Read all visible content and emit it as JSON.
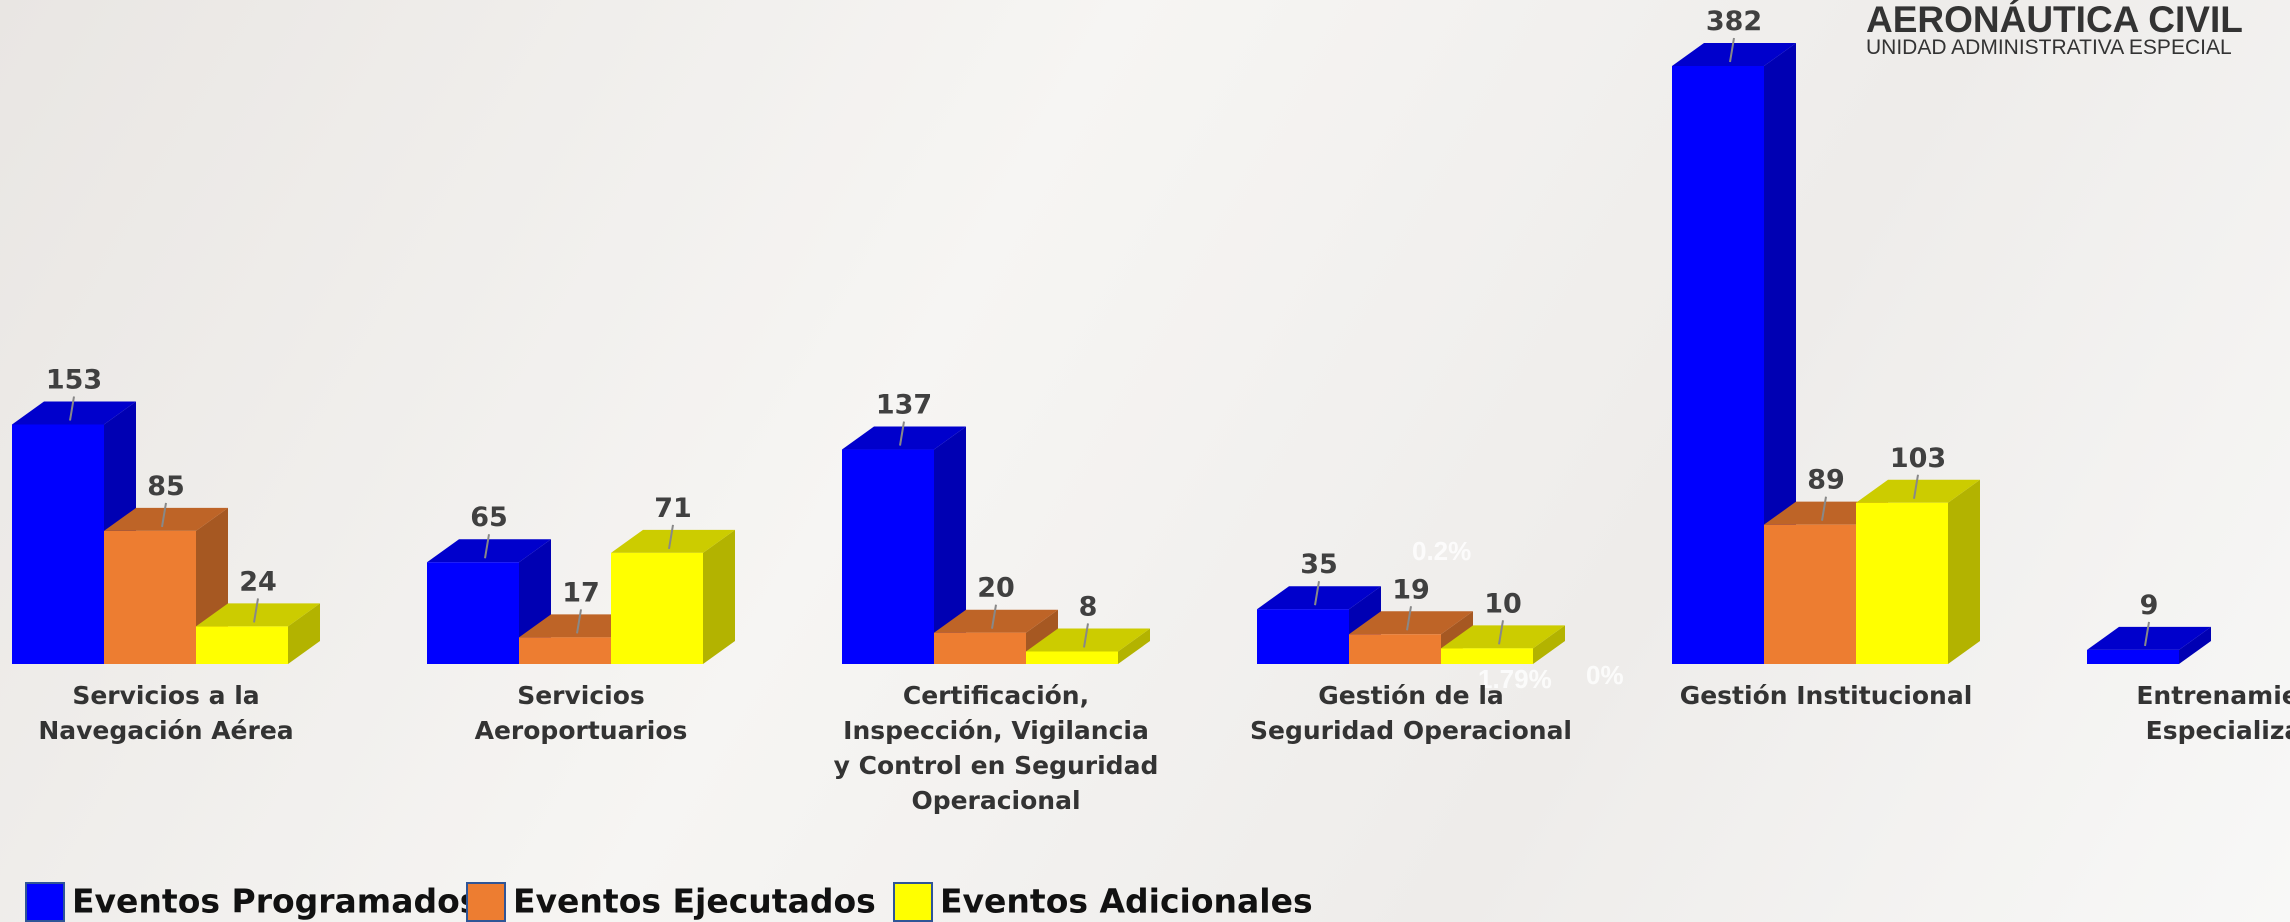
{
  "header": {
    "title": "AERONÁUTICA CIVIL",
    "subtitle": "UNIDAD ADMINISTRATIVA ESPECIAL"
  },
  "chart_data": {
    "type": "bar3d",
    "categories": [
      "Servicios a la Navegación Aérea",
      "Servicios Aeroportuarios",
      "Certificación, Inspección, Vigilancia y Control en Seguridad Operacional",
      "Gestión de la Seguridad Operacional",
      "Gestión Institucional",
      "Entrenamiento Especializado"
    ],
    "series": [
      {
        "name": "Eventos Programados",
        "color": "#0000ff",
        "values": [
          153,
          65,
          137,
          35,
          382,
          9
        ]
      },
      {
        "name": "Eventos Ejecutados",
        "color": "#ed7d31",
        "values": [
          85,
          17,
          20,
          19,
          89,
          null
        ]
      },
      {
        "name": "Eventos Adicionales",
        "color": "#ffff00",
        "values": [
          24,
          71,
          8,
          10,
          103,
          null
        ]
      }
    ],
    "annotations": [
      "0.2%",
      "1.79%",
      "0%"
    ]
  }
}
